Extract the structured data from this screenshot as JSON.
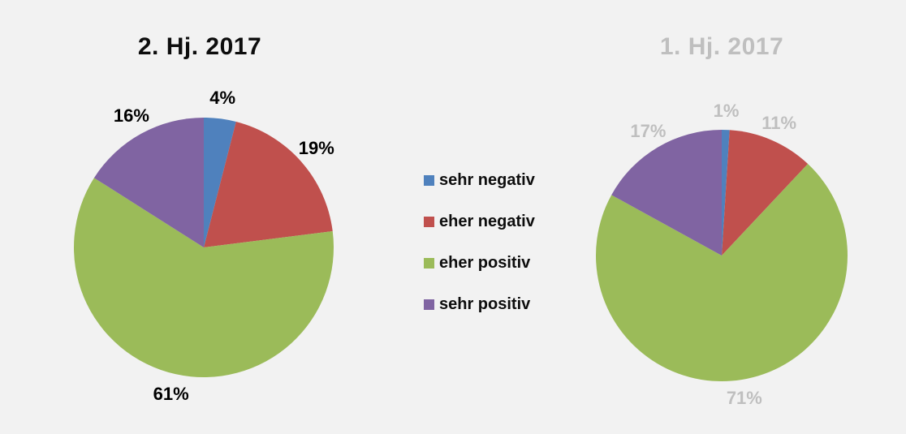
{
  "page": {
    "background_color": "#F2F2F2"
  },
  "legend": {
    "items": [
      {
        "label": "sehr negativ",
        "color": "#4F81BD"
      },
      {
        "label": "eher negativ",
        "color": "#C0504D"
      },
      {
        "label": "eher positiv",
        "color": "#9BBB59"
      },
      {
        "label": "sehr positiv",
        "color": "#8064A2"
      }
    ]
  },
  "chart_data": [
    {
      "type": "pie",
      "title": "2. Hj. 2017",
      "title_color": "#0D0D0D",
      "categories": [
        "sehr negativ",
        "eher negativ",
        "eher positiv",
        "sehr positiv"
      ],
      "values": [
        4,
        19,
        61,
        16
      ],
      "labels": [
        "4%",
        "19%",
        "61%",
        "16%"
      ],
      "colors": [
        "#4F81BD",
        "#C0504D",
        "#9BBB59",
        "#8064A2"
      ],
      "label_color": "#000000",
      "start_angle_deg": 0,
      "direction": "clockwise",
      "legend_position": "center-between-charts",
      "grid": false
    },
    {
      "type": "pie",
      "title": "1. Hj. 2017",
      "title_color": "#BFBFBF",
      "categories": [
        "sehr negativ",
        "eher negativ",
        "eher positiv",
        "sehr positiv"
      ],
      "values": [
        1,
        11,
        71,
        17
      ],
      "labels": [
        "1%",
        "11%",
        "71%",
        "17%"
      ],
      "colors": [
        "#4F81BD",
        "#C0504D",
        "#9BBB59",
        "#8064A2"
      ],
      "label_color": "#BFBFBF",
      "start_angle_deg": 0,
      "direction": "clockwise",
      "legend_position": "center-between-charts",
      "grid": false
    }
  ]
}
